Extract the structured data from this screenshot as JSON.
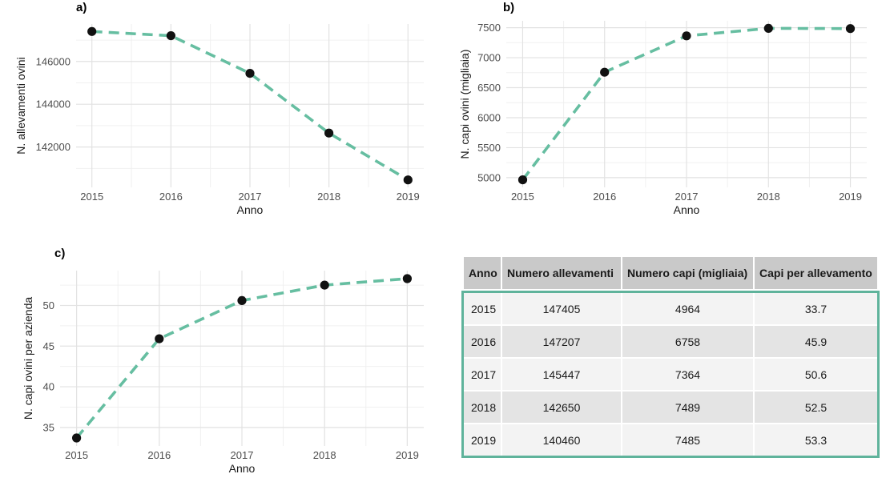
{
  "theme": {
    "background": "#ffffff",
    "line_color": "#66bea1",
    "point_color": "#111111",
    "grid_major": "#e2e2e2",
    "grid_minor": "#f0f0f0",
    "tick_label_color": "#4d4d4d",
    "axis_title_color": "#1a1a1a",
    "panel_label_color": "#000000",
    "table_header_bg": "#c9c9c9",
    "table_row_odd": "#f3f3f3",
    "table_row_even": "#e4e4e4",
    "table_border_color": "#5fb39b",
    "table_text_color": "#1a1a1a"
  },
  "chart_data": [
    {
      "type": "line",
      "panel_label": "a)",
      "x": [
        2015,
        2016,
        2017,
        2018,
        2019
      ],
      "values": [
        147405,
        147207,
        145447,
        142650,
        140460
      ],
      "xlabel": "Anno",
      "ylabel": "N. allevamenti ovini",
      "xticks": [
        2015,
        2016,
        2017,
        2018,
        2019
      ],
      "yticks": [
        142000,
        144000,
        146000
      ],
      "xlim": [
        2014.8,
        2019.2
      ],
      "ylim": [
        140113,
        147752
      ],
      "line_style": "dashed",
      "grid": true,
      "legend": false
    },
    {
      "type": "line",
      "panel_label": "b)",
      "x": [
        2015,
        2016,
        2017,
        2018,
        2019
      ],
      "values": [
        4964,
        6758,
        7364,
        7489,
        7485
      ],
      "xlabel": "Anno",
      "ylabel": "N. capi ovini (migliaia)",
      "xticks": [
        2015,
        2016,
        2017,
        2018,
        2019
      ],
      "yticks": [
        5000,
        5500,
        6000,
        6500,
        7000,
        7500
      ],
      "xlim": [
        2014.8,
        2019.2
      ],
      "ylim": [
        4838,
        7615
      ],
      "line_style": "dashed",
      "grid": true,
      "legend": false
    },
    {
      "type": "line",
      "panel_label": "c)",
      "x": [
        2015,
        2016,
        2017,
        2018,
        2019
      ],
      "values": [
        33.7,
        45.9,
        50.6,
        52.5,
        53.3
      ],
      "xlabel": "Anno",
      "ylabel": "N. capi ovini per azienda",
      "xticks": [
        2015,
        2016,
        2017,
        2018,
        2019
      ],
      "yticks": [
        35,
        40,
        45,
        50
      ],
      "xlim": [
        2014.8,
        2019.2
      ],
      "ylim": [
        32.72,
        54.28
      ],
      "line_style": "dashed",
      "grid": true,
      "legend": false
    },
    {
      "type": "table",
      "columns": [
        "Anno",
        "Numero allevamenti",
        "Numero capi (migliaia)",
        "Capi per allevamento"
      ],
      "rows": [
        [
          "2015",
          "147405",
          "4964",
          "33.7"
        ],
        [
          "2016",
          "147207",
          "6758",
          "45.9"
        ],
        [
          "2017",
          "145447",
          "7364",
          "50.6"
        ],
        [
          "2018",
          "142650",
          "7489",
          "52.5"
        ],
        [
          "2019",
          "140460",
          "7485",
          "53.3"
        ]
      ]
    }
  ]
}
